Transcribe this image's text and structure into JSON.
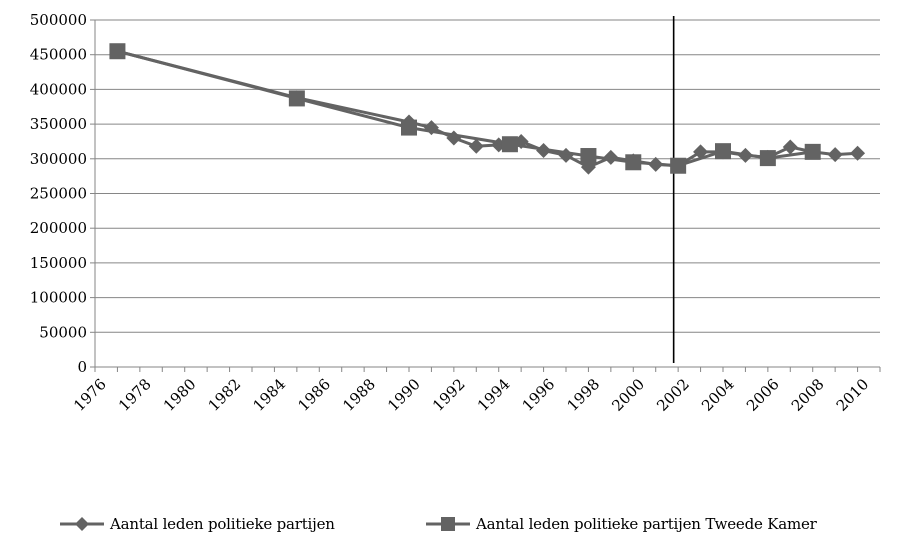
{
  "chart_data": {
    "type": "line",
    "xlim": [
      1976,
      2011
    ],
    "ylim": [
      0,
      500000
    ],
    "ytick_step": 50000,
    "xticks": [
      1976,
      1978,
      1980,
      1982,
      1984,
      1986,
      1988,
      1990,
      1992,
      1994,
      1996,
      1998,
      2000,
      2002,
      2004,
      2006,
      2008,
      2010
    ],
    "yticks": [
      "0",
      "50000",
      "100000",
      "150000",
      "200000",
      "250000",
      "300000",
      "350000",
      "400000",
      "450000",
      "500000"
    ],
    "grid": true,
    "vertical_line_x": 2001.8,
    "legend_position": "bottom",
    "colors": {
      "line": "#636363",
      "marker": "#636363",
      "grid": "#868686",
      "vline": "#000000"
    },
    "series": [
      {
        "name": "Aantal leden politieke partijen",
        "marker": "diamond",
        "points": [
          {
            "x": 1977,
            "y": 455000
          },
          {
            "x": 1985,
            "y": 388000
          },
          {
            "x": 1990,
            "y": 353000
          },
          {
            "x": 1991,
            "y": 345000
          },
          {
            "x": 1992,
            "y": 330000
          },
          {
            "x": 1993,
            "y": 318000
          },
          {
            "x": 1994,
            "y": 320000
          },
          {
            "x": 1995,
            "y": 325000
          },
          {
            "x": 1996,
            "y": 312000
          },
          {
            "x": 1997,
            "y": 305000
          },
          {
            "x": 1998,
            "y": 288000
          },
          {
            "x": 1999,
            "y": 302000
          },
          {
            "x": 2000,
            "y": 297000
          },
          {
            "x": 2001,
            "y": 292000
          },
          {
            "x": 2002,
            "y": 290000
          },
          {
            "x": 2003,
            "y": 310000
          },
          {
            "x": 2004,
            "y": 310000
          },
          {
            "x": 2005,
            "y": 305000
          },
          {
            "x": 2006,
            "y": 302000
          },
          {
            "x": 2007,
            "y": 317000
          },
          {
            "x": 2008,
            "y": 310000
          },
          {
            "x": 2009,
            "y": 306000
          },
          {
            "x": 2010,
            "y": 308000
          }
        ]
      },
      {
        "name": "Aantal leden politieke partijen Tweede Kamer",
        "marker": "square",
        "points": [
          {
            "x": 1977,
            "y": 455000
          },
          {
            "x": 1985,
            "y": 387000
          },
          {
            "x": 1990,
            "y": 345000
          },
          {
            "x": 1994.5,
            "y": 321000
          },
          {
            "x": 1998,
            "y": 304000
          },
          {
            "x": 2000,
            "y": 295000
          },
          {
            "x": 2002,
            "y": 290000
          },
          {
            "x": 2004,
            "y": 311000
          },
          {
            "x": 2006,
            "y": 301000
          },
          {
            "x": 2008,
            "y": 310000
          }
        ]
      }
    ]
  }
}
